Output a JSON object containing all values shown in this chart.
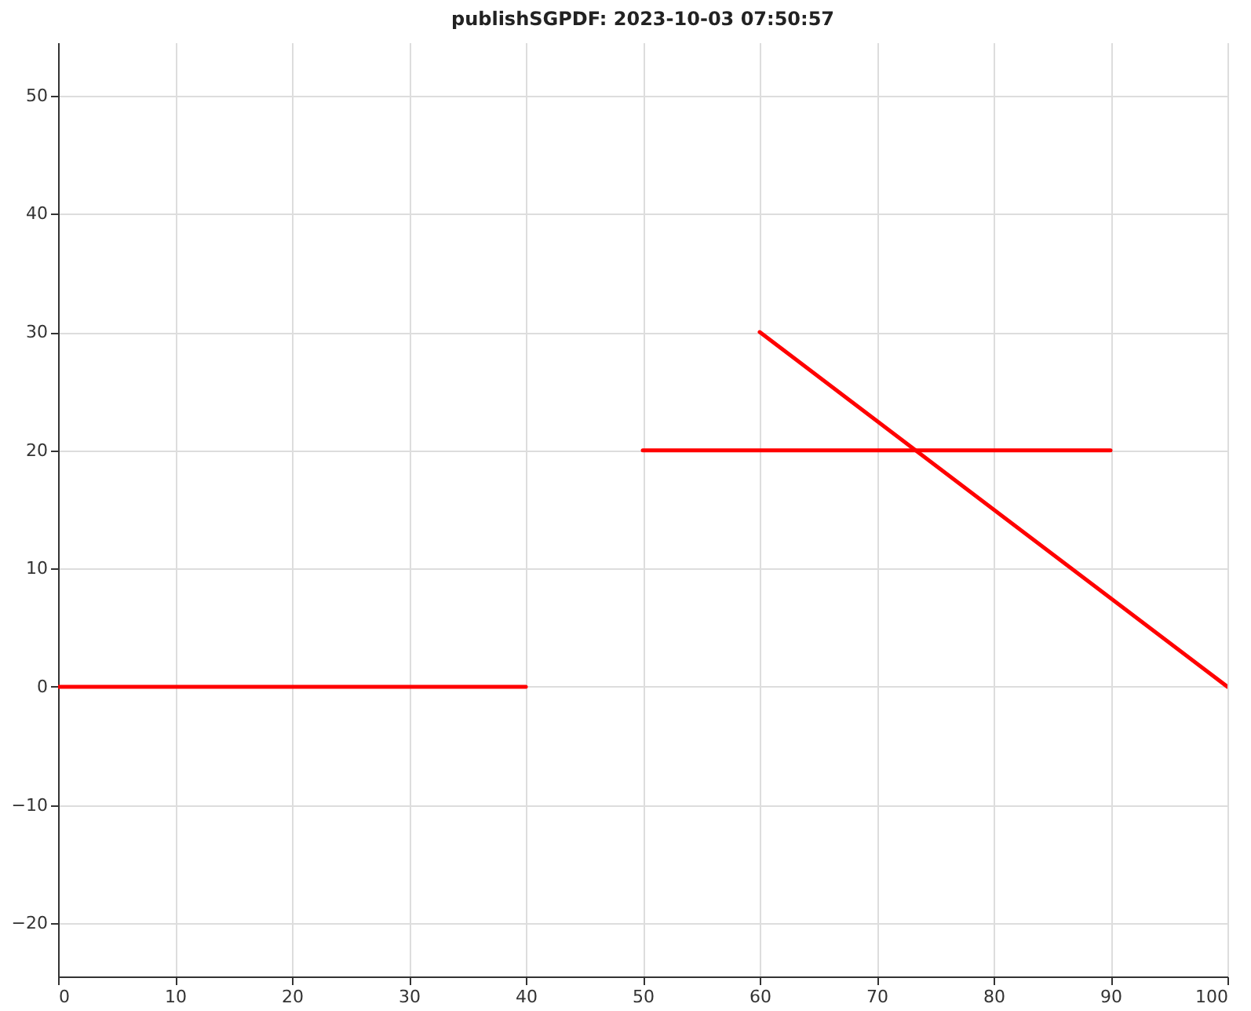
{
  "chart_data": {
    "type": "line",
    "title": "publishSGPDF: 2023-10-03 07:50:57",
    "series": [
      {
        "color": "#ff0000",
        "x": [
          0,
          40
        ],
        "values": [
          0,
          0
        ]
      },
      {
        "color": "#ff0000",
        "x": [
          50,
          90
        ],
        "values": [
          20,
          20
        ]
      },
      {
        "color": "#ff0000",
        "x": [
          60,
          100
        ],
        "values": [
          30,
          0
        ]
      }
    ],
    "xlim": [
      0,
      100
    ],
    "xticks": [
      0,
      10,
      20,
      30,
      40,
      50,
      60,
      70,
      80,
      90,
      100
    ],
    "ylim": [
      -24.5,
      54.5
    ],
    "yticks": [
      -20,
      -10,
      0,
      10,
      20,
      30,
      40,
      50
    ],
    "grid": true,
    "marker": "none",
    "line_style": "solid"
  }
}
